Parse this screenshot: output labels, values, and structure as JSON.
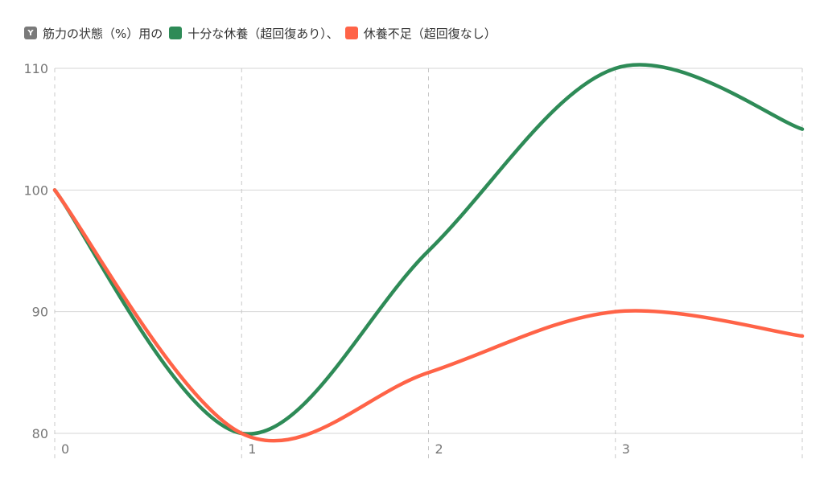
{
  "chart_data": {
    "type": "line",
    "title": "",
    "xlabel": "",
    "ylabel": "",
    "y_axis_legend_label": "Y",
    "y_axis_legend_text": "筋力の状態（%）用の",
    "x": [
      0,
      1,
      2,
      3,
      4
    ],
    "x_tick_labels": [
      "0",
      "1",
      "2",
      "3"
    ],
    "y_ticks": [
      80,
      90,
      100,
      110
    ],
    "ylim": [
      80,
      110
    ],
    "xlim": [
      0,
      4
    ],
    "grid": true,
    "legend_position": "top-left",
    "series": [
      {
        "name": "十分な休養（超回復あり）、",
        "values": [
          100,
          80,
          95,
          110,
          105
        ],
        "color": "#2e8b57"
      },
      {
        "name": "休養不足（超回復なし）",
        "values": [
          100,
          80,
          85,
          90,
          88
        ],
        "color": "#ff6347"
      }
    ]
  }
}
